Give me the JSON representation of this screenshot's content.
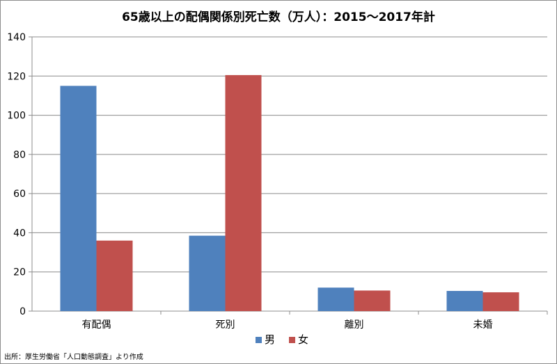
{
  "chart_data": {
    "type": "bar",
    "title": "65歳以上の配偶関係別死亡数（万人）：2015～2017年計",
    "xlabel": "",
    "ylabel": "",
    "categories": [
      "有配偶",
      "死別",
      "離別",
      "未婚"
    ],
    "series": [
      {
        "name": "男",
        "color": "#4f81bd",
        "values": [
          115,
          38.5,
          12,
          10.3
        ]
      },
      {
        "name": "女",
        "color": "#c0504d",
        "values": [
          36,
          120.5,
          10.5,
          9.6
        ]
      }
    ],
    "ylim": [
      0,
      140
    ],
    "yticks": [
      0,
      20,
      40,
      60,
      80,
      100,
      120,
      140
    ],
    "grid": "horizontal",
    "legend": "bottom",
    "source": "出所：厚生労働省「人口動態調査」より作成"
  }
}
